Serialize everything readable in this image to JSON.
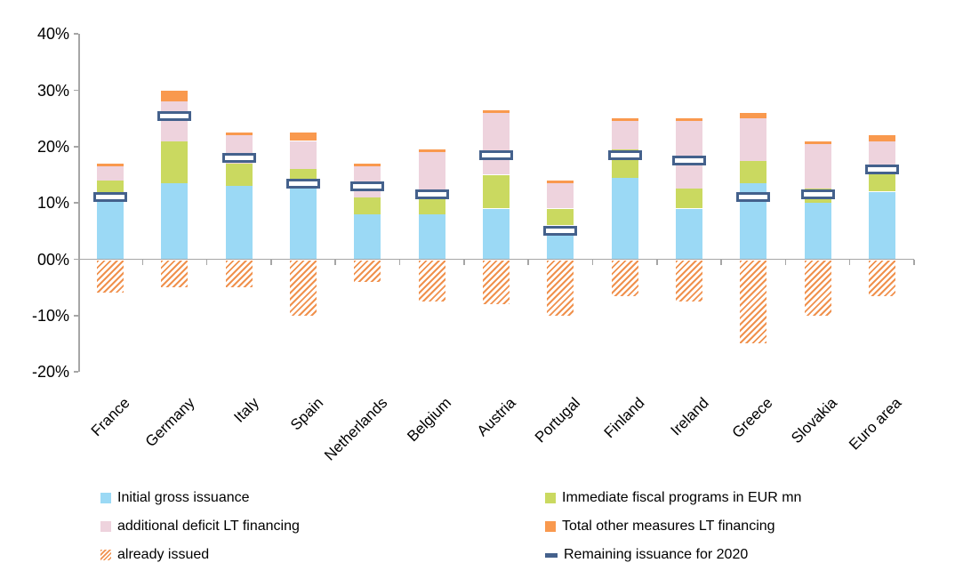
{
  "chart_data": {
    "type": "bar",
    "stacked": true,
    "title": "",
    "unit": "percent",
    "categories": [
      "France",
      "Germany",
      "Italy",
      "Spain",
      "Netherlands",
      "Belgium",
      "Austria",
      "Portugal",
      "Finland",
      "Ireland",
      "Greece",
      "Slovakia",
      "Euro area"
    ],
    "series": [
      {
        "name": "Initial gross issuance",
        "role": "stacked-bar",
        "swatch": "square",
        "color": "#9bd9f5",
        "values": [
          11,
          13.5,
          13,
          13,
          8,
          8,
          9,
          6,
          14.5,
          9,
          13.5,
          10,
          12
        ]
      },
      {
        "name": "Immediate fiscal programs in EUR mn",
        "role": "stacked-bar",
        "swatch": "square",
        "color": "#cad960",
        "values": [
          3,
          7.5,
          4,
          3,
          3,
          3,
          6,
          3,
          5,
          3.5,
          4,
          2.5,
          3.5
        ]
      },
      {
        "name": "additional deficit LT financing",
        "role": "stacked-bar",
        "swatch": "square",
        "color": "#eed3dd",
        "values": [
          2.5,
          7,
          5,
          5,
          5.5,
          8,
          11,
          4.5,
          5,
          12,
          7.5,
          8,
          5.5
        ]
      },
      {
        "name": "Total other measures LT financing",
        "role": "stacked-bar",
        "swatch": "square",
        "color": "#f9994e",
        "values": [
          0.5,
          2,
          0.5,
          1.5,
          0.5,
          0.5,
          0.5,
          0.5,
          0.5,
          0.5,
          1,
          0.5,
          1
        ]
      },
      {
        "name": "already issued",
        "role": "negative-bar",
        "swatch": "hatch",
        "pattern": "diagonal-stripes",
        "color": "#f0914d",
        "values": [
          -6,
          -5,
          -5,
          -10,
          -4,
          -7.5,
          -8,
          -10,
          -6.5,
          -7.5,
          -15,
          -10,
          -6.5
        ]
      },
      {
        "name": "Remaining issuance for 2020",
        "role": "marker",
        "swatch": "dash",
        "color": "#44618c",
        "values": [
          11,
          25.5,
          18,
          13.5,
          13,
          11.5,
          18.5,
          5,
          18.5,
          17.5,
          11,
          11.5,
          16
        ]
      }
    ],
    "y_axis": {
      "min": -20,
      "max": 40,
      "tick_step": 10,
      "tick_labels": [
        "40%",
        "30%",
        "20%",
        "10%",
        "00%",
        "-10%",
        "-20%"
      ],
      "tick_values": [
        40,
        30,
        20,
        10,
        0,
        -10,
        -20
      ]
    },
    "x_axis": {
      "label_rotation_deg": -45
    },
    "grid": false,
    "legend_position": "bottom",
    "legend_columns": 2,
    "legend_layout": [
      {
        "series_index": 0,
        "column": 0,
        "row": 0
      },
      {
        "series_index": 1,
        "column": 1,
        "row": 0
      },
      {
        "series_index": 2,
        "column": 0,
        "row": 1
      },
      {
        "series_index": 3,
        "column": 1,
        "row": 1
      },
      {
        "series_index": 4,
        "column": 0,
        "row": 2
      },
      {
        "series_index": 5,
        "column": 1,
        "row": 2
      }
    ],
    "colors": {
      "axis": "#a6a6a6",
      "text": "#000000",
      "background": "#ffffff",
      "marker_fill": "#ffffff",
      "marker_border": "#44618c",
      "hatch_stripe": "#f0914d"
    }
  }
}
